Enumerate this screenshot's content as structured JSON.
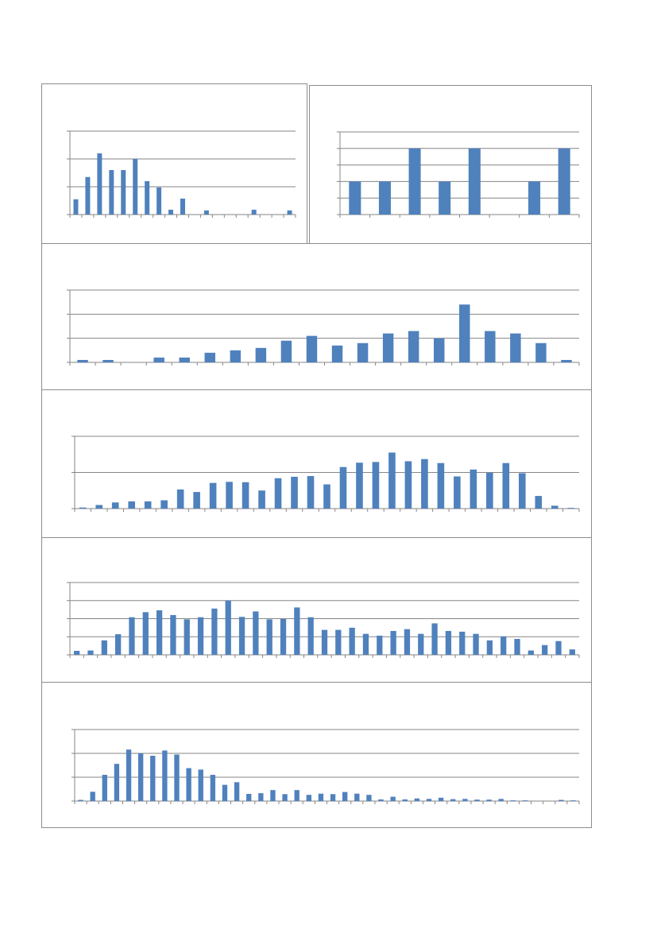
{
  "colors": {
    "bar": "#4f81bd",
    "grid": "#868686",
    "axis": "#868686"
  },
  "chart_data": [
    {
      "type": "bar",
      "title": "",
      "xlabel": "",
      "ylabel": "",
      "ylim": [
        0,
        6
      ],
      "y_gridlines": 3,
      "grid": true,
      "series": [
        {
          "values": [
            1.1,
            2.7,
            4.4,
            3.2,
            3.2,
            4.0,
            2.4,
            1.95,
            0.35,
            1.15,
            0,
            0.3,
            0,
            0,
            0,
            0.35,
            0,
            0,
            0.3
          ]
        }
      ]
    },
    {
      "type": "bar",
      "title": "",
      "xlabel": "",
      "ylabel": "",
      "ylim": [
        0,
        5
      ],
      "y_gridlines": 5,
      "grid": true,
      "series": [
        {
          "values": [
            2,
            2,
            4,
            2,
            4,
            0,
            2,
            4
          ]
        }
      ]
    },
    {
      "type": "bar",
      "title": "",
      "xlabel": "",
      "ylabel": "",
      "ylim": [
        0,
        30
      ],
      "y_gridlines": 3,
      "grid": true,
      "series": [
        {
          "values": [
            1,
            1,
            0,
            2,
            2,
            4,
            5,
            6,
            9,
            11,
            7,
            8,
            12,
            13,
            10,
            24,
            13,
            12,
            8,
            1
          ]
        }
      ]
    },
    {
      "type": "bar",
      "title": "",
      "xlabel": "",
      "ylabel": "",
      "ylim": [
        0,
        20
      ],
      "y_gridlines": 2,
      "grid": true,
      "series": [
        {
          "values": [
            0.3,
            1.0,
            1.7,
            2.0,
            2.0,
            2.3,
            5.3,
            4.6,
            7.1,
            7.4,
            7.3,
            5.0,
            8.4,
            8.8,
            9.0,
            6.7,
            11.5,
            12.7,
            12.9,
            15.5,
            13.1,
            13.7,
            12.6,
            8.9,
            10.8,
            9.9,
            12.6,
            9.8,
            3.5,
            0.8,
            0.2
          ]
        }
      ]
    },
    {
      "type": "bar",
      "title": "",
      "xlabel": "",
      "ylabel": "",
      "ylim": [
        0,
        20
      ],
      "y_gridlines": 4,
      "grid": true,
      "series": [
        {
          "values": [
            1.1,
            1.2,
            4.0,
            5.7,
            10.4,
            11.8,
            12.3,
            11.0,
            9.8,
            10.4,
            12.8,
            15.0,
            10.5,
            12.0,
            9.8,
            9.9,
            13.1,
            10.4,
            6.9,
            6.9,
            7.5,
            5.8,
            5.3,
            6.6,
            7.1,
            5.8,
            8.7,
            6.6,
            6.4,
            5.8,
            4.0,
            5.1,
            4.4,
            1.2,
            2.7,
            3.8,
            1.5
          ]
        }
      ]
    },
    {
      "type": "bar",
      "title": "",
      "xlabel": "",
      "ylabel": "",
      "ylim": [
        0,
        30
      ],
      "y_gridlines": 3,
      "grid": true,
      "series": [
        {
          "values": [
            0.5,
            3.9,
            11.0,
            15.6,
            21.6,
            20.0,
            19.0,
            21.2,
            19.5,
            13.8,
            13.2,
            11.0,
            6.8,
            7.9,
            3.0,
            3.3,
            4.6,
            2.9,
            4.6,
            2.6,
            3.1,
            2.9,
            3.8,
            3.1,
            2.6,
            0.7,
            1.8,
            0.7,
            1.1,
            0.9,
            1.4,
            0.8,
            0.9,
            0.6,
            0.6,
            0.9,
            0.3,
            0.3,
            0,
            0,
            0.5,
            0.3
          ]
        }
      ]
    }
  ]
}
